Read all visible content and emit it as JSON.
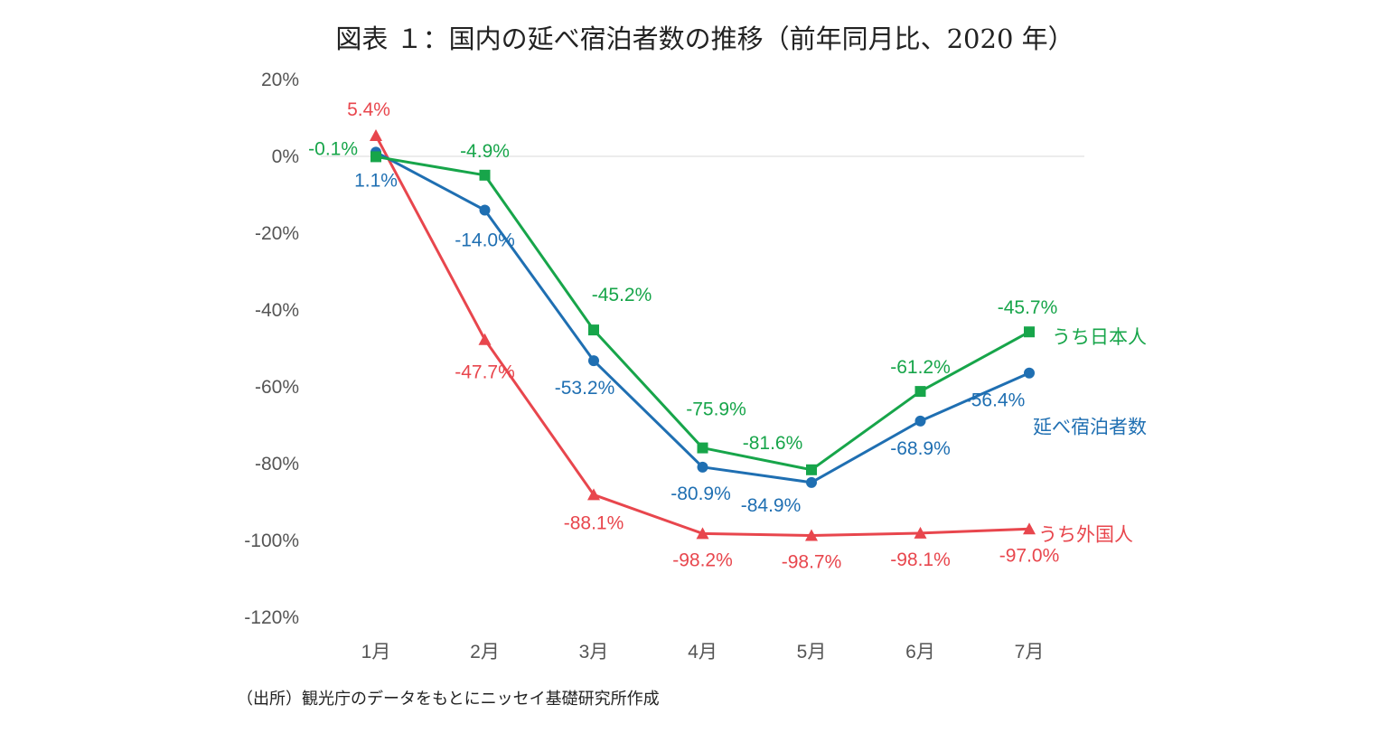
{
  "chart_data": {
    "type": "line",
    "title": "図表 １：国内の延べ宿泊者数の推移（前年同月比、2020 年）",
    "source": "（出所）観光庁のデータをもとにニッセイ基礎研究所作成",
    "categories": [
      "1月",
      "2月",
      "3月",
      "4月",
      "5月",
      "6月",
      "7月"
    ],
    "ylim": [
      -120,
      20
    ],
    "yticks": [
      20,
      0,
      -20,
      -40,
      -60,
      -80,
      -100,
      -120
    ],
    "ytick_labels": [
      "20%",
      "0%",
      "-20%",
      "-40%",
      "-60%",
      "-80%",
      "-100%",
      "-120%"
    ],
    "series": [
      {
        "key": "foreign",
        "name": "うち外国人",
        "color": "#e8464d",
        "marker": "triangle",
        "values": [
          5.4,
          -47.7,
          -88.1,
          -98.2,
          -98.7,
          -98.1,
          -97.0
        ],
        "labels": [
          "5.4%",
          "-47.7%",
          "-88.1%",
          "-98.2%",
          "-98.7%",
          "-98.1%",
          "-97.0%"
        ]
      },
      {
        "key": "total",
        "name": "延べ宿泊者数",
        "color": "#1f6fb2",
        "marker": "circle",
        "values": [
          1.1,
          -14.0,
          -53.2,
          -80.9,
          -84.9,
          -68.9,
          -56.4
        ],
        "labels": [
          "1.1%",
          "-14.0%",
          "-53.2%",
          "-80.9%",
          "-84.9%",
          "-68.9%",
          "-56.4%"
        ]
      },
      {
        "key": "japanese",
        "name": "うち日本人",
        "color": "#17a54a",
        "marker": "square",
        "values": [
          -0.1,
          -4.9,
          -45.2,
          -75.9,
          -81.6,
          -61.2,
          -45.7
        ],
        "labels": [
          "-0.1%",
          "-4.9%",
          "-45.2%",
          "-75.9%",
          "-81.6%",
          "-61.2%",
          "-45.7%"
        ]
      }
    ]
  }
}
